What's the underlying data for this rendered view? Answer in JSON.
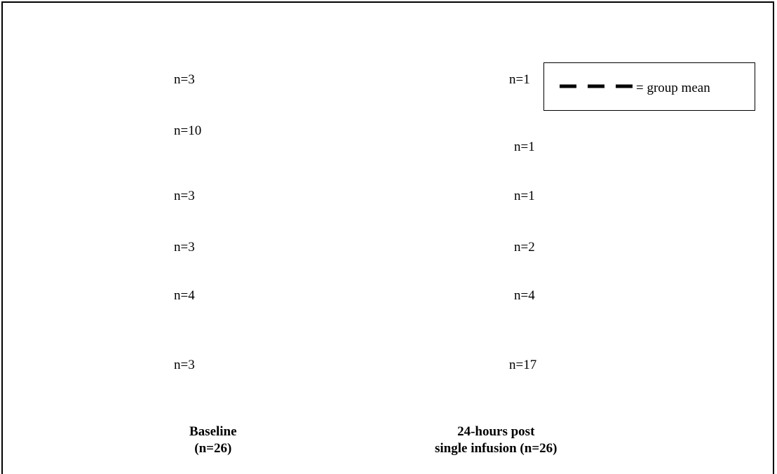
{
  "chart_data": {
    "type": "scatter",
    "title": "",
    "xlabel": "",
    "ylabel": "",
    "categories": [
      "Baseline\n(n=26)",
      "24-hours post\nsingle infusion (n=26)"
    ],
    "category_lines": [
      [
        "Baseline",
        "(n=26)"
      ],
      [
        "24-hours post",
        "single infusion (n=26)"
      ]
    ],
    "group_counts": [
      [
        "n=3",
        "n=10",
        "n=3",
        "n=3",
        "n=4",
        "n=3"
      ],
      [
        "n=1",
        "n=1",
        "n=1",
        "n=2",
        "n=4",
        "n=17"
      ]
    ],
    "legend": {
      "text": "= group mean",
      "marker": "dashed-line"
    }
  }
}
